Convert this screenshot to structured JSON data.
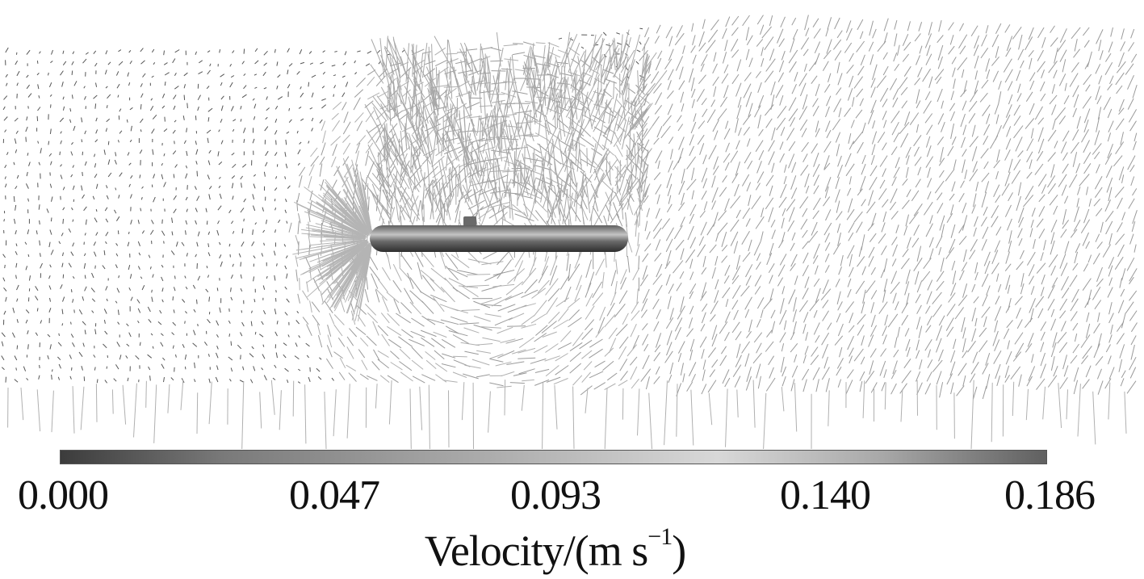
{
  "colorbar": {
    "ticks": [
      "0.000",
      "0.047",
      "0.093",
      "0.140",
      "0.186"
    ],
    "title_main": "Velocity/(m s",
    "title_exp": "−1",
    "title_close": ")",
    "gradient_stops": [
      "#3c3c3c",
      "#7a7a7a",
      "#9a9a9a",
      "#b8b8b8",
      "#d8d8d8",
      "#a8a8a8",
      "#606060"
    ]
  },
  "colors": {
    "vector": "#9a9a9a",
    "vector_dark": "#555555",
    "hull": "#555555",
    "hull_highlight": "#c8c8c8"
  }
}
